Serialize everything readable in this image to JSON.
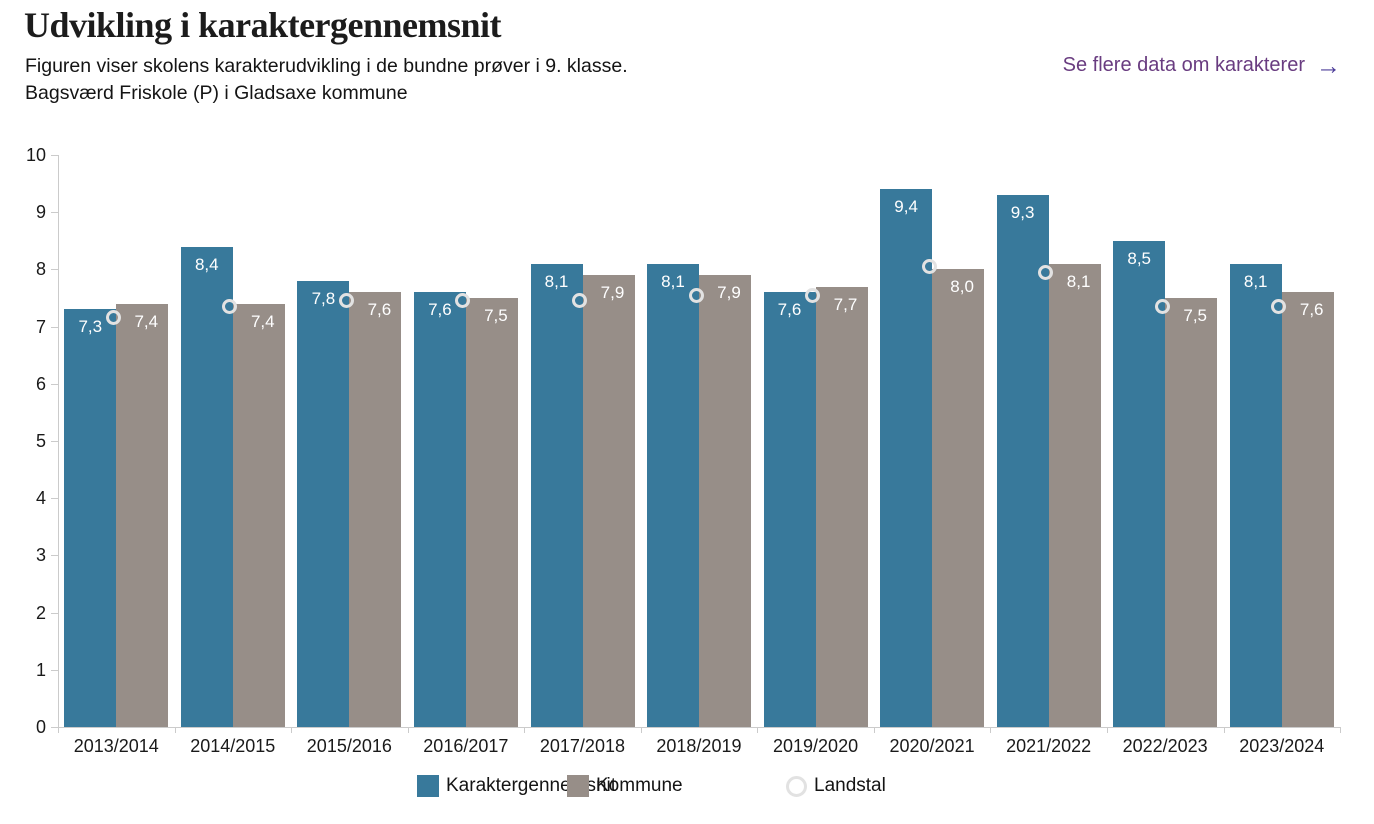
{
  "header": {
    "title": "Udvikling i karaktergennemsnit",
    "subtitle_line1": "Figuren viser skolens karakterudvikling i de bundne prøver i 9. klasse.",
    "subtitle_line2": "Bagsværd Friskole (P) i Gladsaxe kommune",
    "link": {
      "label": "Se flere data om karakterer",
      "arrow": "→"
    }
  },
  "colors": {
    "school_bar": "#38799B",
    "municipality_bar": "#978E88",
    "landstal_ring": "#E2E2E2",
    "axis": "#CBCBCB",
    "bar_label": "#FFFFFF",
    "link_text": "#693C80",
    "link_arrow": "#4D3D99",
    "text": "#1A1A1A"
  },
  "chart_data": {
    "type": "bar",
    "title": "Udvikling i karaktergennemsnit",
    "categories": [
      "2013/2014",
      "2014/2015",
      "2015/2016",
      "2016/2017",
      "2017/2018",
      "2018/2019",
      "2019/2020",
      "2020/2021",
      "2021/2022",
      "2022/2023",
      "2023/2024"
    ],
    "series": [
      {
        "name": "Karaktergennemsnit",
        "kind": "bar",
        "color": "#38799B",
        "values": [
          7.3,
          8.4,
          7.8,
          7.6,
          8.1,
          8.1,
          7.6,
          9.4,
          9.3,
          8.5,
          8.1
        ],
        "value_labels": [
          "7,3",
          "8,4",
          "7,8",
          "7,6",
          "8,1",
          "8,1",
          "7,6",
          "9,4",
          "9,3",
          "8,5",
          "8,1"
        ]
      },
      {
        "name": "Kommune",
        "kind": "bar",
        "color": "#978E88",
        "values": [
          7.4,
          7.4,
          7.6,
          7.5,
          7.9,
          7.9,
          7.7,
          8.0,
          8.1,
          7.5,
          7.6
        ],
        "value_labels": [
          "7,4",
          "7,4",
          "7,6",
          "7,5",
          "7,9",
          "7,9",
          "7,7",
          "8,0",
          "8,1",
          "7,5",
          "7,6"
        ]
      },
      {
        "name": "Landstal",
        "kind": "circle-marker",
        "color": "#E2E2E2",
        "values": [
          7.1,
          7.3,
          7.4,
          7.4,
          7.4,
          7.5,
          7.5,
          8.0,
          7.9,
          7.3,
          7.3
        ]
      }
    ],
    "ylim": [
      0,
      10
    ],
    "yticks": [
      0,
      1,
      2,
      3,
      4,
      5,
      6,
      7,
      8,
      9,
      10
    ],
    "grid": false,
    "legend_position": "bottom",
    "value_label_decimal": "comma"
  },
  "legend": {
    "items": [
      {
        "label": "Karaktergennemsnit",
        "swatch": "square",
        "color": "#38799B"
      },
      {
        "label": "Kommune",
        "swatch": "square",
        "color": "#978E88"
      },
      {
        "label": "Landstal",
        "swatch": "circle",
        "color": "#E2E2E2"
      }
    ]
  }
}
